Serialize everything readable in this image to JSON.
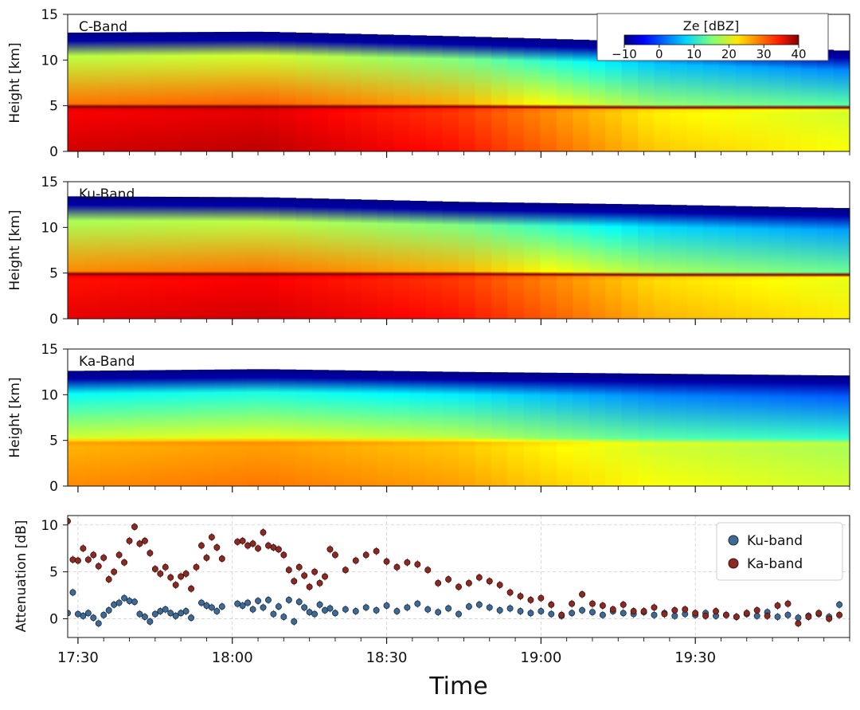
{
  "figure": {
    "xlabel": "Time",
    "time_ticks": [
      "17:30",
      "18:00",
      "18:30",
      "19:00",
      "19:30"
    ]
  },
  "colorbar": {
    "label": "Ze [dBZ]",
    "ticks": [
      "−10",
      "0",
      "10",
      "20",
      "30",
      "40"
    ],
    "range": [
      -10,
      40
    ],
    "colormap": "jet"
  },
  "chart_data": [
    {
      "type": "heatmap",
      "panel": "C-Band",
      "label": "C-Band",
      "ylabel": "Height [km]",
      "ylim": [
        0,
        15
      ],
      "yticks": [
        "0",
        "5",
        "10",
        "15"
      ],
      "xlim": [
        "17:28",
        "20:00"
      ],
      "value_label": "Ze [dBZ]",
      "melting_layer_height_km": [
        4.9,
        4.9,
        4.9,
        4.8,
        4.8
      ],
      "cloud_top_km": [
        13.0,
        13.1,
        12.6,
        12.0,
        11.0
      ],
      "mean_ze_below_ml_dbz": [
        34,
        35,
        31,
        22,
        19
      ]
    },
    {
      "type": "heatmap",
      "panel": "Ku-Band",
      "label": "Ku-Band",
      "ylabel": "Height [km]",
      "ylim": [
        0,
        15
      ],
      "yticks": [
        "0",
        "5",
        "10",
        "15"
      ],
      "xlim": [
        "17:28",
        "20:00"
      ],
      "value_label": "Ze [dBZ]",
      "melting_layer_height_km": [
        4.9,
        4.9,
        4.9,
        4.8,
        4.8
      ],
      "cloud_top_km": [
        13.4,
        13.3,
        12.8,
        12.5,
        12.1
      ],
      "mean_ze_below_ml_dbz": [
        33,
        34,
        31,
        23,
        20
      ]
    },
    {
      "type": "heatmap",
      "panel": "Ka-Band",
      "label": "Ka-Band",
      "ylabel": "Height [km]",
      "ylim": [
        0,
        15
      ],
      "yticks": [
        "0",
        "5",
        "10",
        "15"
      ],
      "xlim": [
        "17:28",
        "20:00"
      ],
      "value_label": "Ze [dBZ]",
      "melting_layer_height_km": [
        5.0,
        5.0,
        5.0,
        4.9,
        4.9
      ],
      "cloud_top_km": [
        12.6,
        12.8,
        12.5,
        12.3,
        12.1
      ],
      "mean_ze_below_ml_dbz": [
        25,
        26,
        24,
        19,
        17
      ]
    },
    {
      "type": "scatter",
      "panel": "attenuation",
      "ylabel": "Attenuation [dB]",
      "ylim": [
        -2,
        11
      ],
      "yticks": [
        "0",
        "5",
        "10"
      ],
      "xlim": [
        "17:28",
        "20:00"
      ],
      "grid": true,
      "legend_position": "top-right",
      "error_bars": true,
      "series": [
        {
          "name": "Ku-band",
          "color": "#3f6a96",
          "points": [
            [
              "17:28",
              0.6
            ],
            [
              "17:29",
              2.8
            ],
            [
              "17:30",
              0.5
            ],
            [
              "17:31",
              0.3
            ],
            [
              "17:32",
              0.6
            ],
            [
              "17:33",
              0.1
            ],
            [
              "17:34",
              -0.5
            ],
            [
              "17:35",
              0.4
            ],
            [
              "17:36",
              0.9
            ],
            [
              "17:37",
              1.5
            ],
            [
              "17:38",
              1.7
            ],
            [
              "17:39",
              2.2
            ],
            [
              "17:40",
              1.9
            ],
            [
              "17:41",
              1.8
            ],
            [
              "17:42",
              0.5
            ],
            [
              "17:43",
              0.2
            ],
            [
              "17:44",
              -0.3
            ],
            [
              "17:45",
              0.5
            ],
            [
              "17:46",
              0.8
            ],
            [
              "17:47",
              1.0
            ],
            [
              "17:48",
              0.6
            ],
            [
              "17:49",
              0.3
            ],
            [
              "17:50",
              0.6
            ],
            [
              "17:51",
              0.8
            ],
            [
              "17:52",
              0.1
            ],
            [
              "17:54",
              1.7
            ],
            [
              "17:55",
              1.4
            ],
            [
              "17:56",
              1.2
            ],
            [
              "17:57",
              0.8
            ],
            [
              "17:58",
              1.3
            ],
            [
              "18:01",
              1.6
            ],
            [
              "18:02",
              1.4
            ],
            [
              "18:03",
              1.7
            ],
            [
              "18:04",
              1.0
            ],
            [
              "18:05",
              1.9
            ],
            [
              "18:06",
              1.2
            ],
            [
              "18:07",
              2.0
            ],
            [
              "18:08",
              0.5
            ],
            [
              "18:09",
              1.3
            ],
            [
              "18:10",
              0.2
            ],
            [
              "18:11",
              2.0
            ],
            [
              "18:12",
              -0.3
            ],
            [
              "18:13",
              1.8
            ],
            [
              "18:14",
              1.2
            ],
            [
              "18:15",
              0.7
            ],
            [
              "18:16",
              0.5
            ],
            [
              "18:17",
              1.5
            ],
            [
              "18:18",
              0.9
            ],
            [
              "18:19",
              1.1
            ],
            [
              "18:20",
              0.6
            ],
            [
              "18:22",
              1.0
            ],
            [
              "18:24",
              0.8
            ],
            [
              "18:26",
              1.2
            ],
            [
              "18:28",
              0.9
            ],
            [
              "18:30",
              1.4
            ],
            [
              "18:32",
              0.8
            ],
            [
              "18:34",
              1.2
            ],
            [
              "18:36",
              1.6
            ],
            [
              "18:38",
              1.0
            ],
            [
              "18:40",
              0.7
            ],
            [
              "18:42",
              1.1
            ],
            [
              "18:44",
              0.5
            ],
            [
              "18:46",
              1.3
            ],
            [
              "18:48",
              1.5
            ],
            [
              "18:50",
              1.2
            ],
            [
              "18:52",
              0.9
            ],
            [
              "18:54",
              1.1
            ],
            [
              "18:56",
              0.8
            ],
            [
              "18:58",
              0.6
            ],
            [
              "19:00",
              0.8
            ],
            [
              "19:02",
              0.5
            ],
            [
              "19:04",
              0.3
            ],
            [
              "19:06",
              0.6
            ],
            [
              "19:08",
              0.9
            ],
            [
              "19:10",
              0.7
            ],
            [
              "19:12",
              0.4
            ],
            [
              "19:14",
              0.8
            ],
            [
              "19:16",
              0.6
            ],
            [
              "19:18",
              0.5
            ],
            [
              "19:20",
              0.7
            ],
            [
              "19:22",
              0.4
            ],
            [
              "19:24",
              0.6
            ],
            [
              "19:26",
              0.3
            ],
            [
              "19:28",
              0.5
            ],
            [
              "19:30",
              0.4
            ],
            [
              "19:32",
              0.6
            ],
            [
              "19:34",
              0.3
            ],
            [
              "19:36",
              0.4
            ],
            [
              "19:38",
              0.2
            ],
            [
              "19:40",
              0.5
            ],
            [
              "19:42",
              0.3
            ],
            [
              "19:44",
              0.7
            ],
            [
              "19:46",
              0.2
            ],
            [
              "19:48",
              0.4
            ],
            [
              "19:50",
              0.1
            ],
            [
              "19:52",
              0.3
            ],
            [
              "19:54",
              0.5
            ],
            [
              "19:56",
              0.2
            ],
            [
              "19:58",
              1.5
            ]
          ]
        },
        {
          "name": "Ka-band",
          "color": "#8a2a22",
          "points": [
            [
              "17:28",
              10.4
            ],
            [
              "17:29",
              6.3
            ],
            [
              "17:30",
              6.2
            ],
            [
              "17:31",
              7.5
            ],
            [
              "17:32",
              6.3
            ],
            [
              "17:33",
              6.8
            ],
            [
              "17:34",
              5.6
            ],
            [
              "17:35",
              6.5
            ],
            [
              "17:36",
              4.2
            ],
            [
              "17:37",
              5.0
            ],
            [
              "17:38",
              6.8
            ],
            [
              "17:39",
              6.0
            ],
            [
              "17:40",
              8.3
            ],
            [
              "17:41",
              9.8
            ],
            [
              "17:42",
              8.0
            ],
            [
              "17:43",
              8.3
            ],
            [
              "17:44",
              7.0
            ],
            [
              "17:45",
              5.3
            ],
            [
              "17:46",
              4.8
            ],
            [
              "17:47",
              5.5
            ],
            [
              "17:48",
              4.4
            ],
            [
              "17:49",
              3.6
            ],
            [
              "17:50",
              4.5
            ],
            [
              "17:51",
              4.8
            ],
            [
              "17:52",
              3.2
            ],
            [
              "17:53",
              5.5
            ],
            [
              "17:54",
              7.8
            ],
            [
              "17:55",
              6.5
            ],
            [
              "17:56",
              8.7
            ],
            [
              "17:57",
              7.6
            ],
            [
              "17:58",
              6.4
            ],
            [
              "18:01",
              8.2
            ],
            [
              "18:02",
              8.3
            ],
            [
              "18:03",
              7.8
            ],
            [
              "18:04",
              8.0
            ],
            [
              "18:05",
              7.5
            ],
            [
              "18:06",
              9.2
            ],
            [
              "18:07",
              7.8
            ],
            [
              "18:08",
              7.6
            ],
            [
              "18:09",
              7.4
            ],
            [
              "18:10",
              6.8
            ],
            [
              "18:11",
              5.2
            ],
            [
              "18:12",
              4.0
            ],
            [
              "18:13",
              5.5
            ],
            [
              "18:14",
              4.6
            ],
            [
              "18:15",
              3.4
            ],
            [
              "18:16",
              5.0
            ],
            [
              "18:17",
              3.8
            ],
            [
              "18:18",
              4.5
            ],
            [
              "18:19",
              7.4
            ],
            [
              "18:20",
              6.8
            ],
            [
              "18:22",
              5.2
            ],
            [
              "18:24",
              6.2
            ],
            [
              "18:26",
              6.8
            ],
            [
              "18:28",
              7.2
            ],
            [
              "18:30",
              6.1
            ],
            [
              "18:32",
              5.5
            ],
            [
              "18:34",
              6.0
            ],
            [
              "18:36",
              5.8
            ],
            [
              "18:38",
              5.2
            ],
            [
              "18:40",
              3.8
            ],
            [
              "18:42",
              4.2
            ],
            [
              "18:44",
              3.4
            ],
            [
              "18:46",
              3.8
            ],
            [
              "18:48",
              4.4
            ],
            [
              "18:50",
              4.0
            ],
            [
              "18:52",
              3.6
            ],
            [
              "18:54",
              2.8
            ],
            [
              "18:56",
              2.4
            ],
            [
              "18:58",
              2.0
            ],
            [
              "19:00",
              2.2
            ],
            [
              "19:02",
              1.5
            ],
            [
              "19:04",
              0.4
            ],
            [
              "19:06",
              1.6
            ],
            [
              "19:08",
              2.6
            ],
            [
              "19:10",
              1.6
            ],
            [
              "19:12",
              1.4
            ],
            [
              "19:14",
              1.0
            ],
            [
              "19:16",
              1.5
            ],
            [
              "19:18",
              0.8
            ],
            [
              "19:20",
              0.8
            ],
            [
              "19:22",
              1.2
            ],
            [
              "19:24",
              0.5
            ],
            [
              "19:26",
              0.9
            ],
            [
              "19:28",
              1.0
            ],
            [
              "19:30",
              0.6
            ],
            [
              "19:32",
              0.3
            ],
            [
              "19:34",
              0.8
            ],
            [
              "19:36",
              0.4
            ],
            [
              "19:38",
              0.2
            ],
            [
              "19:40",
              0.6
            ],
            [
              "19:42",
              0.9
            ],
            [
              "19:44",
              0.3
            ],
            [
              "19:46",
              1.4
            ],
            [
              "19:48",
              1.6
            ],
            [
              "19:50",
              -0.5
            ],
            [
              "19:52",
              0.2
            ],
            [
              "19:54",
              0.6
            ],
            [
              "19:56",
              0.0
            ],
            [
              "19:58",
              0.4
            ]
          ]
        }
      ]
    }
  ]
}
